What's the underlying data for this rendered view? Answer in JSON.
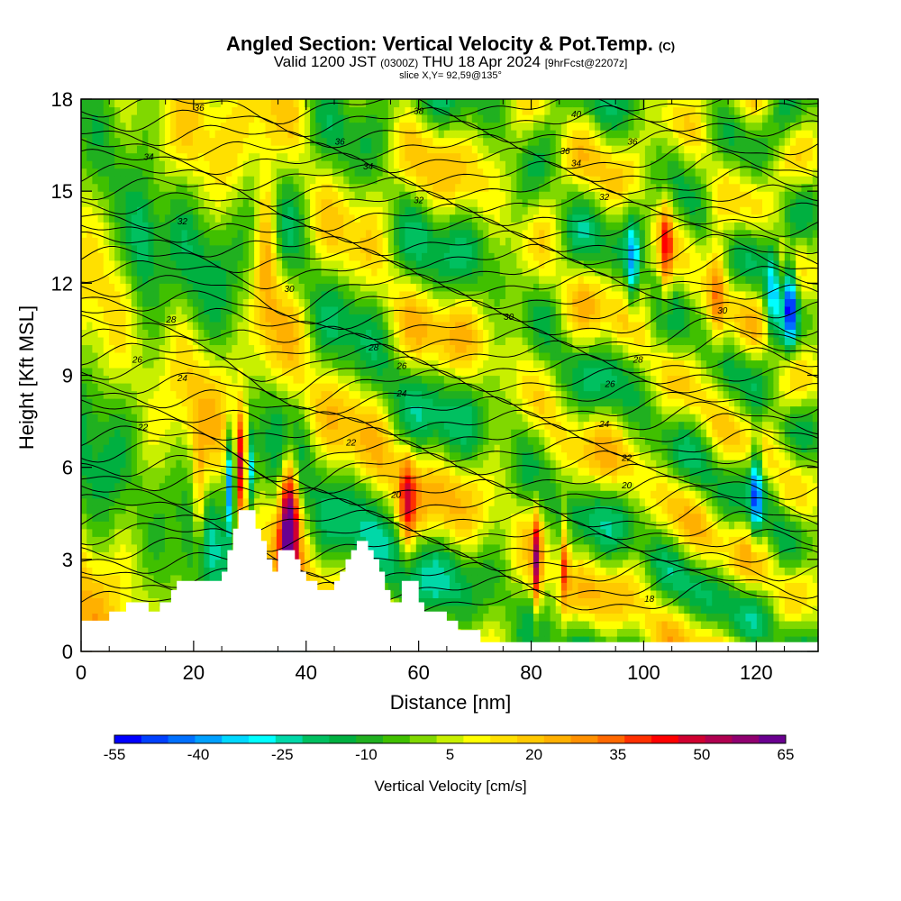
{
  "header": {
    "title": "Angled Section: Vertical Velocity & Pot.Temp.",
    "title_suffix": "(C)",
    "subtitle_a": "Valid 1200 JST",
    "subtitle_b": "(0300Z)",
    "subtitle_c": "THU 18 Apr 2024",
    "subtitle_d": "[9hrFcst@2207z]",
    "slice": "slice X,Y= 92,59@135°"
  },
  "chart_data": {
    "type": "heatmap",
    "xlabel": "Distance [nm]",
    "ylabel": "Height [Kft MSL]",
    "xlim": [
      0,
      131
    ],
    "ylim": [
      0,
      18
    ],
    "x_ticks": [
      0,
      20,
      40,
      60,
      80,
      100,
      120
    ],
    "y_ticks": [
      0,
      3,
      6,
      9,
      12,
      15,
      18
    ],
    "colorbar": {
      "label": "Vertical Velocity [cm/s]",
      "tick_labels": [
        "-55",
        "-40",
        "-25",
        "-10",
        "5",
        "20",
        "35",
        "50",
        "65"
      ],
      "levels": [
        -55,
        -50,
        -45,
        -40,
        -35,
        -30,
        -25,
        -20,
        -15,
        -10,
        -5,
        0,
        5,
        10,
        15,
        20,
        25,
        30,
        35,
        40,
        45,
        50,
        55,
        60,
        65
      ],
      "colors": [
        "#0000ff",
        "#0040ff",
        "#0070ff",
        "#00a0ff",
        "#00d8ff",
        "#00ffff",
        "#00d8a8",
        "#00c060",
        "#00b040",
        "#20b020",
        "#40c000",
        "#80d800",
        "#c8f000",
        "#ffff00",
        "#ffe000",
        "#ffc800",
        "#ffb000",
        "#ff9000",
        "#ff6800",
        "#ff3000",
        "#ff0000",
        "#d00030",
        "#b00050",
        "#900070",
        "#6a0090"
      ]
    },
    "contour_labels": [
      {
        "value": "36",
        "x": 21,
        "y": 17.7
      },
      {
        "value": "38",
        "x": 60,
        "y": 17.6
      },
      {
        "value": "40",
        "x": 88,
        "y": 17.5
      },
      {
        "value": "36",
        "x": 46,
        "y": 16.6
      },
      {
        "value": "36",
        "x": 86,
        "y": 16.3
      },
      {
        "value": "36",
        "x": 98,
        "y": 16.6
      },
      {
        "value": "34",
        "x": 12,
        "y": 16.1
      },
      {
        "value": "34",
        "x": 51,
        "y": 15.8
      },
      {
        "value": "34",
        "x": 88,
        "y": 15.9
      },
      {
        "value": "32",
        "x": 60,
        "y": 14.7
      },
      {
        "value": "32",
        "x": 93,
        "y": 14.8
      },
      {
        "value": "32",
        "x": 18,
        "y": 14.0
      },
      {
        "value": "30",
        "x": 37,
        "y": 11.8
      },
      {
        "value": "30",
        "x": 76,
        "y": 10.9
      },
      {
        "value": "30",
        "x": 114,
        "y": 11.1
      },
      {
        "value": "28",
        "x": 16,
        "y": 10.8
      },
      {
        "value": "28",
        "x": 52,
        "y": 9.9
      },
      {
        "value": "28",
        "x": 99,
        "y": 9.5
      },
      {
        "value": "26",
        "x": 10,
        "y": 9.5
      },
      {
        "value": "26",
        "x": 57,
        "y": 9.3
      },
      {
        "value": "26",
        "x": 94,
        "y": 8.7
      },
      {
        "value": "24",
        "x": 18,
        "y": 8.9
      },
      {
        "value": "24",
        "x": 57,
        "y": 8.4
      },
      {
        "value": "24",
        "x": 93,
        "y": 7.4
      },
      {
        "value": "22",
        "x": 11,
        "y": 7.3
      },
      {
        "value": "22",
        "x": 48,
        "y": 6.8
      },
      {
        "value": "22",
        "x": 97,
        "y": 6.3
      },
      {
        "value": "20",
        "x": 56,
        "y": 5.1
      },
      {
        "value": "20",
        "x": 97,
        "y": 5.4
      },
      {
        "value": "18",
        "x": 101,
        "y": 1.7
      }
    ],
    "terrain_heights_kft": [
      [
        0,
        1
      ],
      [
        5,
        1
      ],
      [
        5,
        1.3
      ],
      [
        8,
        1.3
      ],
      [
        8,
        1.6
      ],
      [
        12,
        1.6
      ],
      [
        12,
        1.3
      ],
      [
        14,
        1.3
      ],
      [
        14,
        1.6
      ],
      [
        16,
        1.6
      ],
      [
        16,
        2
      ],
      [
        17,
        2
      ],
      [
        17,
        2.3
      ],
      [
        20,
        2.3
      ],
      [
        20,
        2.3
      ],
      [
        25,
        2.3
      ],
      [
        25,
        2.6
      ],
      [
        26,
        2.6
      ],
      [
        26,
        3.3
      ],
      [
        27,
        3.3
      ],
      [
        27,
        4
      ],
      [
        28,
        4
      ],
      [
        28,
        4.6
      ],
      [
        31,
        4.6
      ],
      [
        31,
        4
      ],
      [
        32,
        4
      ],
      [
        32,
        3.6
      ],
      [
        33,
        3.6
      ],
      [
        33,
        3
      ],
      [
        34,
        3
      ],
      [
        34,
        2.6
      ],
      [
        35,
        2.6
      ],
      [
        35,
        3.3
      ],
      [
        38,
        3.3
      ],
      [
        38,
        3
      ],
      [
        39,
        3
      ],
      [
        39,
        2.6
      ],
      [
        40,
        2.6
      ],
      [
        40,
        2.3
      ],
      [
        42,
        2.3
      ],
      [
        42,
        2
      ],
      [
        45,
        2
      ],
      [
        45,
        2.3
      ],
      [
        46,
        2.3
      ],
      [
        46,
        2.6
      ],
      [
        47,
        2.6
      ],
      [
        47,
        3
      ],
      [
        48,
        3
      ],
      [
        48,
        3.3
      ],
      [
        49,
        3.3
      ],
      [
        49,
        3.6
      ],
      [
        51,
        3.6
      ],
      [
        51,
        3.3
      ],
      [
        52,
        3.3
      ],
      [
        52,
        3
      ],
      [
        53,
        3
      ],
      [
        53,
        2.6
      ],
      [
        54,
        2.6
      ],
      [
        54,
        2
      ],
      [
        55,
        2
      ],
      [
        55,
        1.6
      ],
      [
        57,
        1.6
      ],
      [
        57,
        2.3
      ],
      [
        60,
        2.3
      ],
      [
        60,
        1.6
      ],
      [
        61,
        1.6
      ],
      [
        61,
        1.3
      ],
      [
        65,
        1.3
      ],
      [
        65,
        1
      ],
      [
        67,
        1
      ],
      [
        67,
        0.7
      ],
      [
        71,
        0.7
      ],
      [
        71,
        0.3
      ],
      [
        131,
        0.3
      ]
    ]
  }
}
